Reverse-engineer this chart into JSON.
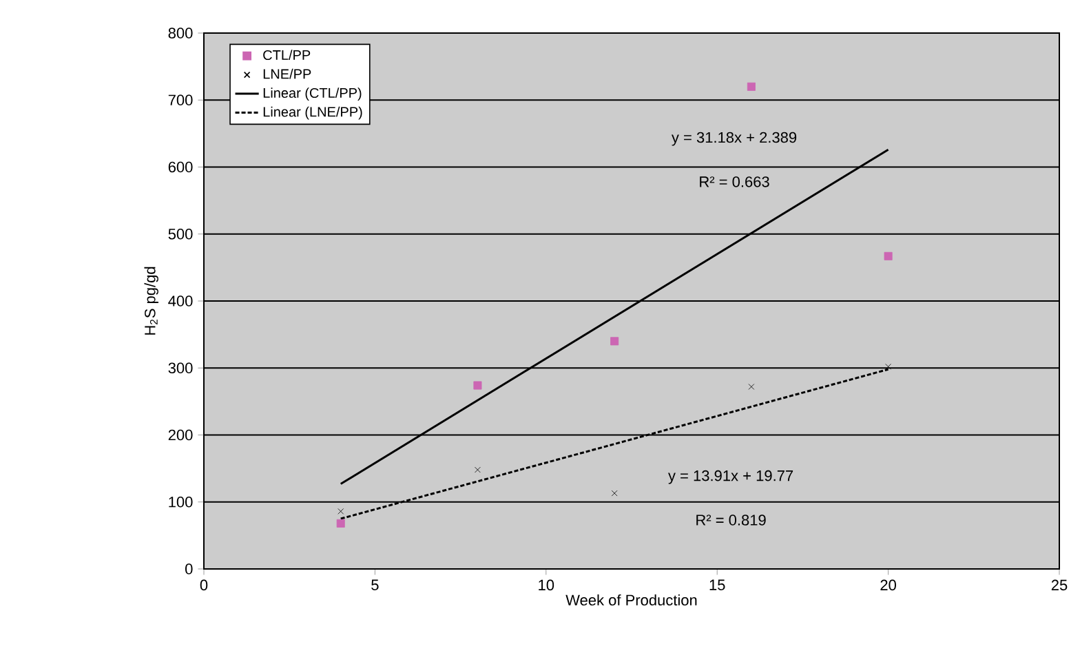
{
  "chart_data": {
    "type": "scatter",
    "xlabel": "Week of Production",
    "ylabel": "H$_{2}$S pg/gd",
    "xlim": [
      0,
      25
    ],
    "ylim": [
      0,
      800
    ],
    "xticks": [
      0,
      5,
      10,
      15,
      20,
      25
    ],
    "yticks": [
      0,
      100,
      200,
      300,
      400,
      500,
      600,
      700,
      800
    ],
    "grid": "y",
    "legend": "top left",
    "series": [
      {
        "name": "CTL/PP",
        "marker": "square",
        "color": "#cc66b3",
        "x": [
          4,
          8,
          12,
          16,
          20
        ],
        "values": [
          68,
          274,
          340,
          720,
          467
        ]
      },
      {
        "name": "LNE/PP",
        "marker": "cross",
        "color": "#000000",
        "x": [
          4,
          8,
          12,
          16,
          20
        ],
        "values": [
          86,
          148,
          113,
          272,
          302
        ]
      },
      {
        "name": "Linear (CTL/PP)",
        "type": "line",
        "marker": "none",
        "line_style": "solid",
        "color": "#000000",
        "x": [
          4,
          20
        ],
        "values": [
          127,
          626
        ]
      },
      {
        "name": "Linear (LNE/PP)",
        "type": "line",
        "marker": "none",
        "line_style": "dashed",
        "color": "#000000",
        "x": [
          4,
          20
        ],
        "values": [
          75,
          298
        ]
      }
    ],
    "annotations": [
      "y = 31.18x + 2.389",
      "R² = 0.663",
      "y = 13.91x + 19.77",
      "R² = 0.819"
    ]
  }
}
